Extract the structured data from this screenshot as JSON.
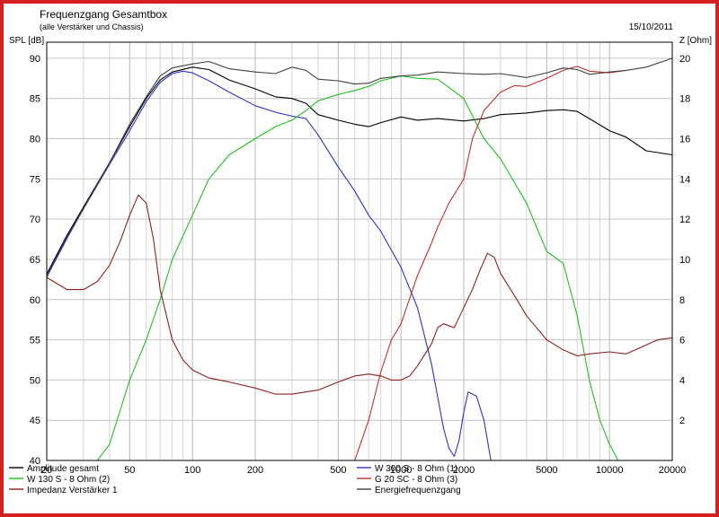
{
  "chart_data": {
    "type": "line",
    "title": "Frequenzgang Gesamtbox",
    "subtitle": "(alle Verstärker und Chassis)",
    "date": "15/10/2011",
    "ylabel_left": "SPL [dB]",
    "ylabel_right": "Z [Ohm]",
    "xscale": "log",
    "xlim": [
      20,
      20000
    ],
    "ylim_left": [
      40,
      92
    ],
    "ylim_right": [
      0,
      20.8
    ],
    "grid": true,
    "legend_placement": "bottom",
    "x_ticks": [
      20,
      50,
      100,
      200,
      500,
      1000,
      2000,
      5000,
      10000,
      20000
    ],
    "x_tick_labels": [
      "20",
      "50",
      "100",
      "200",
      "500",
      "1000",
      "2000",
      "5000",
      "10000",
      "20000"
    ],
    "y_left_ticks": [
      40,
      45,
      50,
      55,
      60,
      65,
      70,
      75,
      80,
      85,
      90
    ],
    "y_left_tick_labels": [
      "40",
      "45",
      "50",
      "55",
      "60",
      "65",
      "70",
      "75",
      "80",
      "85",
      "90"
    ],
    "y_right_ticks": [
      2,
      4,
      6,
      8,
      10,
      12,
      14,
      16,
      18,
      20
    ],
    "y_right_tick_labels": [
      "2",
      "4",
      "6",
      "8",
      "10",
      "12",
      "14",
      "16",
      "18",
      "20"
    ],
    "series": [
      {
        "name": "Amplitude gesamt",
        "color": "#000000",
        "axis": "left",
        "points": [
          [
            20,
            63.2
          ],
          [
            25,
            68
          ],
          [
            30,
            71.5
          ],
          [
            40,
            77
          ],
          [
            50,
            81.5
          ],
          [
            60,
            85
          ],
          [
            70,
            87.3
          ],
          [
            80,
            88.3
          ],
          [
            100,
            88.9
          ],
          [
            120,
            88.6
          ],
          [
            150,
            87.3
          ],
          [
            200,
            86.2
          ],
          [
            250,
            85.2
          ],
          [
            300,
            85
          ],
          [
            350,
            84.4
          ],
          [
            400,
            83
          ],
          [
            500,
            82.3
          ],
          [
            600,
            81.8
          ],
          [
            700,
            81.5
          ],
          [
            800,
            82
          ],
          [
            1000,
            82.7
          ],
          [
            1200,
            82.3
          ],
          [
            1500,
            82.5
          ],
          [
            2000,
            82.2
          ],
          [
            2500,
            82.5
          ],
          [
            3000,
            83
          ],
          [
            4000,
            83.2
          ],
          [
            5000,
            83.5
          ],
          [
            6000,
            83.6
          ],
          [
            7000,
            83.4
          ],
          [
            8000,
            82.5
          ],
          [
            10000,
            81
          ],
          [
            12000,
            80.2
          ],
          [
            15000,
            78.5
          ],
          [
            20000,
            78
          ]
        ]
      },
      {
        "name": "W 300 S - 8 Ohm (1)",
        "color": "#3030c8",
        "axis": "left",
        "points": [
          [
            20,
            63
          ],
          [
            25,
            67.8
          ],
          [
            30,
            71.3
          ],
          [
            40,
            76.8
          ],
          [
            50,
            81
          ],
          [
            60,
            84.6
          ],
          [
            70,
            87
          ],
          [
            80,
            88.1
          ],
          [
            90,
            88.4
          ],
          [
            100,
            88.2
          ],
          [
            120,
            87.2
          ],
          [
            150,
            85.8
          ],
          [
            200,
            84.1
          ],
          [
            250,
            83.3
          ],
          [
            300,
            82.8
          ],
          [
            350,
            82.5
          ],
          [
            400,
            80.5
          ],
          [
            500,
            76.5
          ],
          [
            600,
            73.5
          ],
          [
            700,
            70.5
          ],
          [
            800,
            68.5
          ],
          [
            1000,
            64
          ],
          [
            1200,
            59
          ],
          [
            1400,
            52
          ],
          [
            1600,
            44
          ],
          [
            1700,
            41.5
          ],
          [
            1800,
            40.5
          ],
          [
            1900,
            42.5
          ],
          [
            2000,
            46
          ],
          [
            2100,
            48.5
          ],
          [
            2300,
            48
          ],
          [
            2500,
            45
          ],
          [
            2700,
            40
          ]
        ]
      },
      {
        "name": "W 130 S - 8 Ohm (2)",
        "color": "#20c020",
        "axis": "left",
        "points": [
          [
            35,
            40
          ],
          [
            40,
            42
          ],
          [
            50,
            50
          ],
          [
            60,
            55
          ],
          [
            70,
            60
          ],
          [
            80,
            65
          ],
          [
            100,
            70.5
          ],
          [
            120,
            75
          ],
          [
            150,
            78
          ],
          [
            200,
            80
          ],
          [
            250,
            81.5
          ],
          [
            300,
            82.3
          ],
          [
            350,
            83.5
          ],
          [
            400,
            84.7
          ],
          [
            500,
            85.5
          ],
          [
            600,
            86
          ],
          [
            700,
            86.5
          ],
          [
            800,
            87.2
          ],
          [
            1000,
            87.8
          ],
          [
            1200,
            87.5
          ],
          [
            1500,
            87.4
          ],
          [
            2000,
            85
          ],
          [
            2500,
            80
          ],
          [
            3000,
            77.5
          ],
          [
            4000,
            72
          ],
          [
            5000,
            66
          ],
          [
            6000,
            64.5
          ],
          [
            7000,
            58
          ],
          [
            8000,
            50
          ],
          [
            9000,
            45
          ],
          [
            10000,
            42
          ],
          [
            11000,
            40
          ]
        ]
      },
      {
        "name": "G 20 SC - 8 Ohm (3)",
        "color": "#c03030",
        "axis": "left",
        "points": [
          [
            600,
            40
          ],
          [
            700,
            45
          ],
          [
            800,
            51
          ],
          [
            900,
            55
          ],
          [
            1000,
            57
          ],
          [
            1200,
            63
          ],
          [
            1400,
            67
          ],
          [
            1500,
            69
          ],
          [
            1700,
            72
          ],
          [
            2000,
            75
          ],
          [
            2200,
            80
          ],
          [
            2500,
            83.5
          ],
          [
            3000,
            85.8
          ],
          [
            3500,
            86.6
          ],
          [
            4000,
            86.5
          ],
          [
            5000,
            87.5
          ],
          [
            6000,
            88.5
          ],
          [
            7000,
            89
          ],
          [
            8000,
            88.4
          ],
          [
            10000,
            88.2
          ],
          [
            12000,
            88.5
          ]
        ]
      },
      {
        "name": "Impedanz Verstärker 1",
        "color": "#8b2020",
        "axis": "right",
        "points": [
          [
            20,
            9.1
          ],
          [
            25,
            8.5
          ],
          [
            30,
            8.5
          ],
          [
            35,
            8.9
          ],
          [
            40,
            9.7
          ],
          [
            45,
            10.9
          ],
          [
            50,
            12.2
          ],
          [
            55,
            13.2
          ],
          [
            60,
            12.8
          ],
          [
            65,
            11
          ],
          [
            70,
            8.5
          ],
          [
            80,
            6
          ],
          [
            90,
            5
          ],
          [
            100,
            4.5
          ],
          [
            120,
            4.1
          ],
          [
            150,
            3.9
          ],
          [
            200,
            3.6
          ],
          [
            250,
            3.3
          ],
          [
            300,
            3.3
          ],
          [
            400,
            3.5
          ],
          [
            500,
            3.9
          ],
          [
            600,
            4.2
          ],
          [
            700,
            4.3
          ],
          [
            800,
            4.2
          ],
          [
            900,
            4
          ],
          [
            1000,
            4
          ],
          [
            1100,
            4.2
          ],
          [
            1200,
            4.7
          ],
          [
            1400,
            5.8
          ],
          [
            1500,
            6.6
          ],
          [
            1600,
            6.8
          ],
          [
            1800,
            6.6
          ],
          [
            2000,
            7.6
          ],
          [
            2200,
            8.5
          ],
          [
            2400,
            9.5
          ],
          [
            2600,
            10.3
          ],
          [
            2800,
            10.1
          ],
          [
            3000,
            9.3
          ],
          [
            3500,
            8.2
          ],
          [
            4000,
            7.2
          ],
          [
            5000,
            6
          ],
          [
            6000,
            5.5
          ],
          [
            7000,
            5.2
          ],
          [
            8000,
            5.3
          ],
          [
            10000,
            5.4
          ],
          [
            12000,
            5.3
          ],
          [
            14000,
            5.6
          ],
          [
            17000,
            6
          ],
          [
            20000,
            6.1
          ]
        ]
      },
      {
        "name": "Energiefrequenzgang",
        "color": "#404040",
        "axis": "left",
        "points": [
          [
            20,
            62.8
          ],
          [
            25,
            67.6
          ],
          [
            30,
            71.3
          ],
          [
            40,
            77
          ],
          [
            50,
            81.8
          ],
          [
            60,
            85.2
          ],
          [
            70,
            87.8
          ],
          [
            80,
            88.8
          ],
          [
            100,
            89.3
          ],
          [
            120,
            89.6
          ],
          [
            150,
            88.7
          ],
          [
            200,
            88.3
          ],
          [
            250,
            88.1
          ],
          [
            300,
            88.9
          ],
          [
            350,
            88.5
          ],
          [
            400,
            87.4
          ],
          [
            500,
            87.2
          ],
          [
            600,
            86.8
          ],
          [
            700,
            86.9
          ],
          [
            800,
            87.5
          ],
          [
            1000,
            87.8
          ],
          [
            1200,
            87.9
          ],
          [
            1500,
            88.3
          ],
          [
            2000,
            88.1
          ],
          [
            2500,
            88
          ],
          [
            3000,
            88.1
          ],
          [
            4000,
            87.6
          ],
          [
            5000,
            88.2
          ],
          [
            6000,
            88.8
          ],
          [
            7000,
            88.6
          ],
          [
            8000,
            88
          ],
          [
            10000,
            88.3
          ],
          [
            12000,
            88.5
          ],
          [
            15000,
            88.9
          ],
          [
            20000,
            90
          ]
        ]
      }
    ]
  }
}
